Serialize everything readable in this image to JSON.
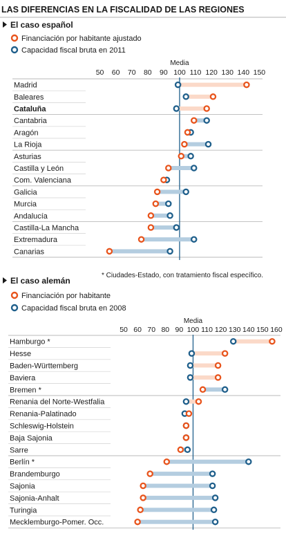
{
  "title": "LAS DIFERENCIAS EN LA FISCALIDAD DE LAS REGIONES",
  "colors": {
    "financing": "#e8541c",
    "capacity": "#1f5f8b",
    "bar_orange": "#fbd9c8",
    "bar_blue": "#b4cde0",
    "axis": "#1f5f8b"
  },
  "chart_data": [
    {
      "type": "dumbbell",
      "title": "El caso español",
      "axis_label": "Media",
      "xlim": [
        45,
        152
      ],
      "ticks": [
        50,
        60,
        70,
        80,
        90,
        100,
        110,
        120,
        130,
        140,
        150
      ],
      "reference": 100,
      "series": [
        {
          "name": "Financiación por habitante ajustado",
          "key": "financing"
        },
        {
          "name": "Capacidad fiscal bruta en 2011",
          "key": "capacity"
        }
      ],
      "rows": [
        {
          "label": "Madrid",
          "financing": 142,
          "capacity": 99
        },
        {
          "label": "Baleares",
          "financing": 121,
          "capacity": 104
        },
        {
          "label": "Cataluña",
          "financing": 117,
          "capacity": 98,
          "bold": true
        },
        {
          "label": "Cantabria",
          "financing": 109,
          "capacity": 117
        },
        {
          "label": "Aragón",
          "financing": 105,
          "capacity": 107
        },
        {
          "label": "La Rioja",
          "financing": 103,
          "capacity": 118
        },
        {
          "label": "Asturias",
          "financing": 101,
          "capacity": 107
        },
        {
          "label": "Castilla y León",
          "financing": 93,
          "capacity": 109
        },
        {
          "label": "Com. Valenciana",
          "financing": 90,
          "capacity": 92
        },
        {
          "label": "Galicia",
          "financing": 86,
          "capacity": 104
        },
        {
          "label": "Murcia",
          "financing": 85,
          "capacity": 93
        },
        {
          "label": "Andalucía",
          "financing": 82,
          "capacity": 94
        },
        {
          "label": "Castilla-La Mancha",
          "financing": 82,
          "capacity": 98
        },
        {
          "label": "Extremadura",
          "financing": 76,
          "capacity": 109
        },
        {
          "label": "Canarias",
          "financing": 56,
          "capacity": 94
        }
      ],
      "groups": [
        [
          0,
          2
        ],
        [
          3,
          5
        ],
        [
          6,
          8
        ],
        [
          9,
          11
        ],
        [
          12,
          14
        ]
      ]
    },
    {
      "type": "dumbbell",
      "title": "El caso alemán",
      "axis_label": "Media",
      "xlim": [
        45,
        163
      ],
      "ticks": [
        50,
        60,
        70,
        80,
        90,
        100,
        110,
        120,
        130,
        140,
        150,
        160
      ],
      "reference": 100,
      "series": [
        {
          "name": "Financiación por habitante",
          "key": "financing"
        },
        {
          "name": "Capacidad fiscal bruta en 2008",
          "key": "capacity"
        }
      ],
      "rows": [
        {
          "label": "Hamburgo *",
          "financing": 157,
          "capacity": 129
        },
        {
          "label": "Hesse",
          "financing": 123,
          "capacity": 99
        },
        {
          "label": "Baden-Württemberg",
          "financing": 118,
          "capacity": 98
        },
        {
          "label": "Baviera",
          "financing": 118,
          "capacity": 98
        },
        {
          "label": "Bremen *",
          "financing": 107,
          "capacity": 123
        },
        {
          "label": "Renania del Norte-Westfalia",
          "financing": 104,
          "capacity": 95
        },
        {
          "label": "Renania-Palatinado",
          "financing": 97,
          "capacity": 94
        },
        {
          "label": "Schleswig-Holstein",
          "financing": 95,
          "capacity": 95
        },
        {
          "label": "Baja Sajonia",
          "financing": 95,
          "capacity": 95
        },
        {
          "label": "Sarre",
          "financing": 91,
          "capacity": 96
        },
        {
          "label": "Berlín *",
          "financing": 81,
          "capacity": 140
        },
        {
          "label": "Brandemburgo",
          "financing": 69,
          "capacity": 114
        },
        {
          "label": "Sajonia",
          "financing": 64,
          "capacity": 114
        },
        {
          "label": "Sajonia-Anhalt",
          "financing": 64,
          "capacity": 116
        },
        {
          "label": "Turingia",
          "financing": 62,
          "capacity": 115
        },
        {
          "label": "Mecklemburgo-Pomer. Occ.",
          "financing": 60,
          "capacity": 116
        }
      ],
      "groups": [
        [
          0,
          4
        ],
        [
          5,
          9
        ],
        [
          10,
          15
        ]
      ]
    }
  ],
  "footnote": "* Ciudades-Estado, con tratamiento fiscal específico."
}
